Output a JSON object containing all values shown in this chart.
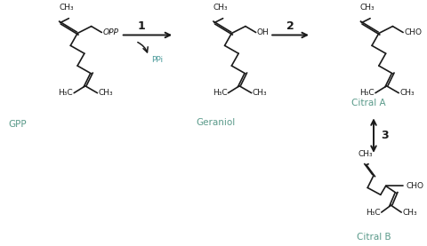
{
  "background_color": "#ffffff",
  "text_color_black": "#1a1a1a",
  "text_color_teal": "#5a9a8a",
  "text_color_ppi": "#4a9a9a",
  "label_gpp": "GPP",
  "label_geraniol": "Geraniol",
  "label_citral_a": "Citral A",
  "label_citral_b": "Citral B",
  "step1": "1",
  "step2": "2",
  "step3": "3",
  "ppi": "PPi",
  "opp": "OPP",
  "oh": "OH",
  "cho": "CHO",
  "ch3": "CH₃",
  "h3c": "H₃C",
  "figsize": [
    4.8,
    2.77
  ],
  "dpi": 100
}
